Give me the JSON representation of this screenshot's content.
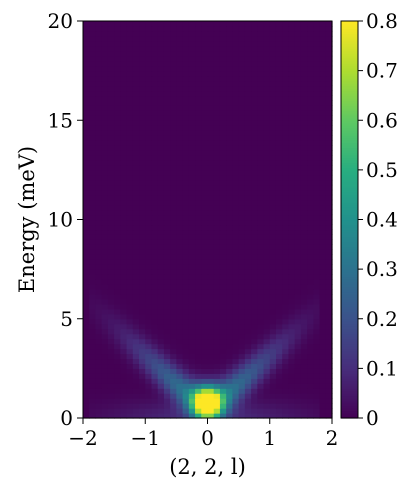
{
  "chart_data": {
    "type": "heatmap",
    "xlabel": "(2, 2, l)",
    "ylabel": "Energy (meV)",
    "xlim": [
      -2,
      2
    ],
    "ylim": [
      0,
      20
    ],
    "x_ticks": [
      -2,
      -1,
      0,
      1,
      2
    ],
    "x_tick_labels": [
      "−2",
      "−1",
      "0",
      "1",
      "2"
    ],
    "y_ticks": [
      0,
      5,
      10,
      15,
      20
    ],
    "y_tick_labels": [
      "0",
      "5",
      "10",
      "15",
      "20"
    ],
    "colorbar": {
      "colormap": "viridis",
      "range": [
        0,
        0.8
      ],
      "ticks": [
        0,
        0.1,
        0.2,
        0.3,
        0.4,
        0.5,
        0.6,
        0.7,
        0.8
      ],
      "tick_labels": [
        "0",
        "0.1",
        "0.2",
        "0.3",
        "0.4",
        "0.5",
        "0.6",
        "0.7",
        "0.8"
      ]
    },
    "grid_cols": 40,
    "grid_rows": 80,
    "colormap_stops": [
      "#440154",
      "#472d7b",
      "#3b528b",
      "#2c728e",
      "#21918c",
      "#28ae80",
      "#5ec962",
      "#addc30",
      "#fde725"
    ],
    "dispersion_model": {
      "energy_gap": 0.8,
      "slope": 3.0,
      "peak_x_width": 0.22,
      "peak_energy_width": 0.75,
      "peak_amplitude": 0.85,
      "branch_energy_width": 0.9,
      "branch_amplitude": 0.34,
      "branch_envelope_width": 1.1,
      "low_energy_leak_amplitude": 0.1,
      "low_energy_leak_width": 1.5,
      "x_cutoff": 1.85
    }
  },
  "grid": {
    "show": false
  },
  "legend": {
    "show": false
  }
}
